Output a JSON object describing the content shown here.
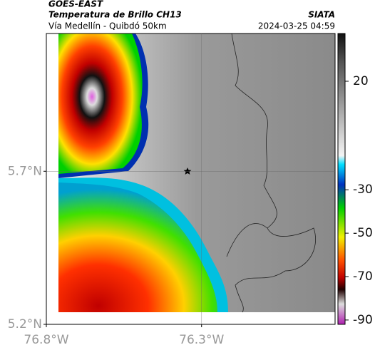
{
  "header": {
    "satellite": "GOES-EAST",
    "product": "Temperatura de Brillo CH13",
    "subtitle": "Vía Medellín - Quibdó 50km",
    "source": "SIATA",
    "datetime": "2024-03-25 04:59"
  },
  "map": {
    "xlim": [
      -76.8,
      -75.87
    ],
    "ylim": [
      5.2,
      6.15
    ],
    "xticks": [
      {
        "value": -76.8,
        "label": "76.8°W"
      },
      {
        "value": -76.3,
        "label": "76.3°W"
      }
    ],
    "yticks": [
      {
        "value": 5.2,
        "label": "5.2°N"
      },
      {
        "value": 5.7,
        "label": "5.7°N"
      }
    ],
    "grid": true
  },
  "colorbar": {
    "clim": [
      -92,
      42
    ],
    "ticks": [
      20,
      -30,
      -50,
      -70,
      -90
    ]
  }
}
